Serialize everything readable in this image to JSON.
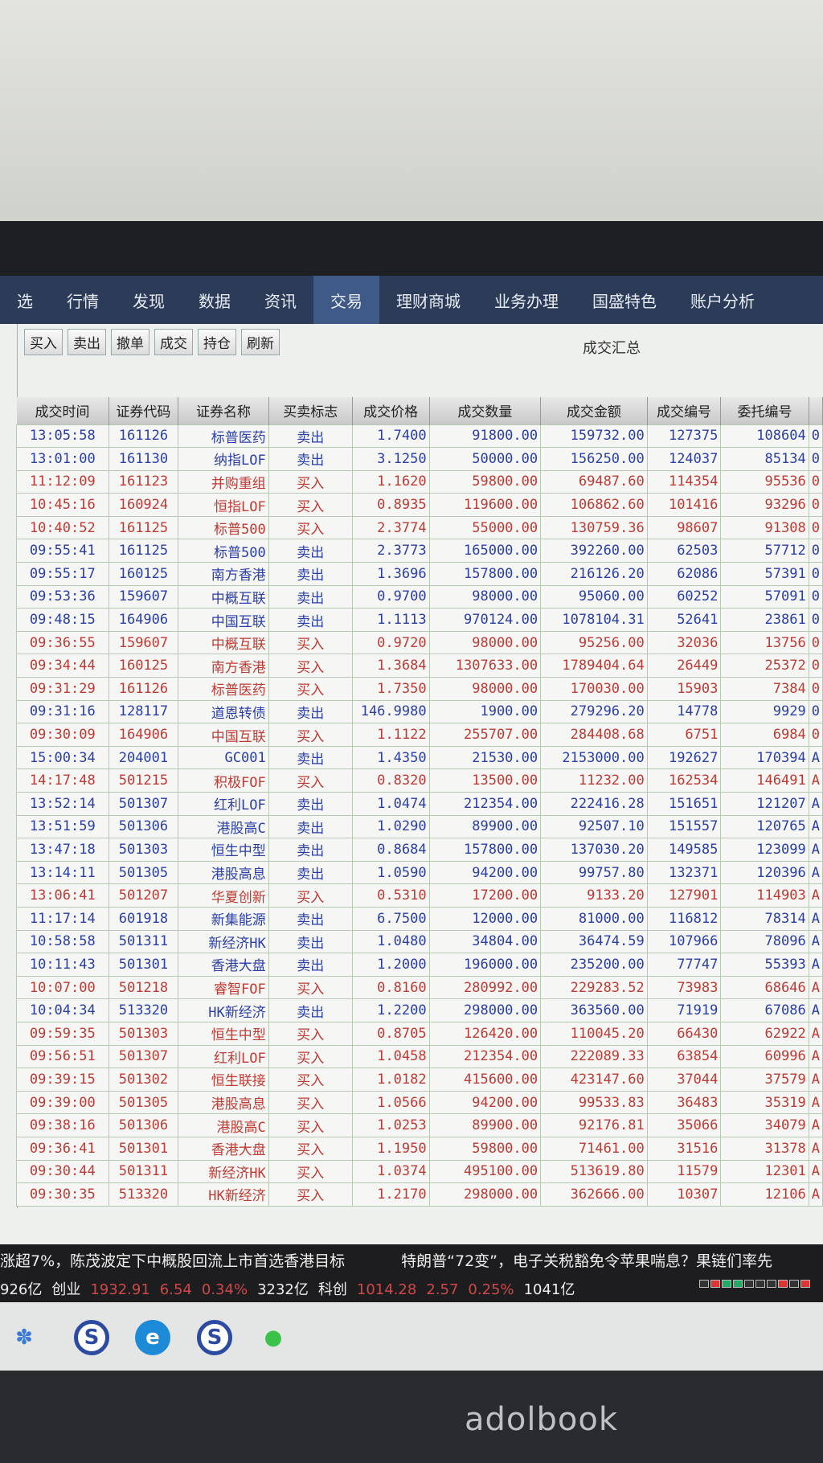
{
  "nav": [
    "选",
    "行情",
    "发现",
    "数据",
    "资讯",
    "交易",
    "理财商城",
    "业务办理",
    "国盛特色",
    "账户分析"
  ],
  "nav_active": 5,
  "toolbar": [
    "买入",
    "卖出",
    "撤单",
    "成交",
    "持仓",
    "刷新"
  ],
  "panel_title": "成交汇总",
  "columns": [
    "成交时间",
    "证券代码",
    "证券名称",
    "买卖标志",
    "成交价格",
    "成交数量",
    "成交金额",
    "成交编号",
    "委托编号",
    ""
  ],
  "colors": {
    "sell": "#2a3ea8",
    "buy": "#bf3a34",
    "nav": "#2b3b58"
  },
  "rows": [
    [
      "13:05:58",
      "161126",
      "标普医药",
      "卖出",
      "1.7400",
      "91800.00",
      "159732.00",
      "127375",
      "108604",
      "0"
    ],
    [
      "13:01:00",
      "161130",
      "纳指LOF",
      "卖出",
      "3.1250",
      "50000.00",
      "156250.00",
      "124037",
      "85134",
      "0"
    ],
    [
      "11:12:09",
      "161123",
      "并购重组",
      "买入",
      "1.1620",
      "59800.00",
      "69487.60",
      "114354",
      "95536",
      "0"
    ],
    [
      "10:45:16",
      "160924",
      "恒指LOF",
      "买入",
      "0.8935",
      "119600.00",
      "106862.60",
      "101416",
      "93296",
      "0"
    ],
    [
      "10:40:52",
      "161125",
      "标普500",
      "买入",
      "2.3774",
      "55000.00",
      "130759.36",
      "98607",
      "91308",
      "0"
    ],
    [
      "09:55:41",
      "161125",
      "标普500",
      "卖出",
      "2.3773",
      "165000.00",
      "392260.00",
      "62503",
      "57712",
      "0"
    ],
    [
      "09:55:17",
      "160125",
      "南方香港",
      "卖出",
      "1.3696",
      "157800.00",
      "216126.20",
      "62086",
      "57391",
      "0"
    ],
    [
      "09:53:36",
      "159607",
      "中概互联",
      "卖出",
      "0.9700",
      "98000.00",
      "95060.00",
      "60252",
      "57091",
      "0"
    ],
    [
      "09:48:15",
      "164906",
      "中国互联",
      "卖出",
      "1.1113",
      "970124.00",
      "1078104.31",
      "52641",
      "23861",
      "0"
    ],
    [
      "09:36:55",
      "159607",
      "中概互联",
      "买入",
      "0.9720",
      "98000.00",
      "95256.00",
      "32036",
      "13756",
      "0"
    ],
    [
      "09:34:44",
      "160125",
      "南方香港",
      "买入",
      "1.3684",
      "1307633.00",
      "1789404.64",
      "26449",
      "25372",
      "0"
    ],
    [
      "09:31:29",
      "161126",
      "标普医药",
      "买入",
      "1.7350",
      "98000.00",
      "170030.00",
      "15903",
      "7384",
      "0"
    ],
    [
      "09:31:16",
      "128117",
      "道恩转债",
      "卖出",
      "146.9980",
      "1900.00",
      "279296.20",
      "14778",
      "9929",
      "0"
    ],
    [
      "09:30:09",
      "164906",
      "中国互联",
      "买入",
      "1.1122",
      "255707.00",
      "284408.68",
      "6751",
      "6984",
      "0"
    ],
    [
      "15:00:34",
      "204001",
      "GC001",
      "卖出",
      "1.4350",
      "21530.00",
      "2153000.00",
      "192627",
      "170394",
      "A"
    ],
    [
      "14:17:48",
      "501215",
      "积极FOF",
      "买入",
      "0.8320",
      "13500.00",
      "11232.00",
      "162534",
      "146491",
      "A"
    ],
    [
      "13:52:14",
      "501307",
      "红利LOF",
      "卖出",
      "1.0474",
      "212354.00",
      "222416.28",
      "151651",
      "121207",
      "A"
    ],
    [
      "13:51:59",
      "501306",
      "港股高C",
      "卖出",
      "1.0290",
      "89900.00",
      "92507.10",
      "151557",
      "120765",
      "A"
    ],
    [
      "13:47:18",
      "501303",
      "恒生中型",
      "卖出",
      "0.8684",
      "157800.00",
      "137030.20",
      "149585",
      "123099",
      "A"
    ],
    [
      "13:14:11",
      "501305",
      "港股高息",
      "卖出",
      "1.0590",
      "94200.00",
      "99757.80",
      "132371",
      "120396",
      "A"
    ],
    [
      "13:06:41",
      "501207",
      "华夏创新",
      "买入",
      "0.5310",
      "17200.00",
      "9133.20",
      "127901",
      "114903",
      "A"
    ],
    [
      "11:17:14",
      "601918",
      "新集能源",
      "卖出",
      "6.7500",
      "12000.00",
      "81000.00",
      "116812",
      "78314",
      "A"
    ],
    [
      "10:58:58",
      "501311",
      "新经济HK",
      "卖出",
      "1.0480",
      "34804.00",
      "36474.59",
      "107966",
      "78096",
      "A"
    ],
    [
      "10:11:43",
      "501301",
      "香港大盘",
      "卖出",
      "1.2000",
      "196000.00",
      "235200.00",
      "77747",
      "55393",
      "A"
    ],
    [
      "10:07:00",
      "501218",
      "睿智FOF",
      "买入",
      "0.8160",
      "280992.00",
      "229283.52",
      "73983",
      "68646",
      "A"
    ],
    [
      "10:04:34",
      "513320",
      "HK新经济",
      "卖出",
      "1.2200",
      "298000.00",
      "363560.00",
      "71919",
      "67086",
      "A"
    ],
    [
      "09:59:35",
      "501303",
      "恒生中型",
      "买入",
      "0.8705",
      "126420.00",
      "110045.20",
      "66430",
      "62922",
      "A"
    ],
    [
      "09:56:51",
      "501307",
      "红利LOF",
      "买入",
      "1.0458",
      "212354.00",
      "222089.33",
      "63854",
      "60996",
      "A"
    ],
    [
      "09:39:15",
      "501302",
      "恒生联接",
      "买入",
      "1.0182",
      "415600.00",
      "423147.60",
      "37044",
      "37579",
      "A"
    ],
    [
      "09:39:00",
      "501305",
      "港股高息",
      "买入",
      "1.0566",
      "94200.00",
      "99533.83",
      "36483",
      "35319",
      "A"
    ],
    [
      "09:38:16",
      "501306",
      "港股高C",
      "买入",
      "1.0253",
      "89900.00",
      "92176.81",
      "35066",
      "34079",
      "A"
    ],
    [
      "09:36:41",
      "501301",
      "香港大盘",
      "买入",
      "1.1950",
      "59800.00",
      "71461.00",
      "31516",
      "31378",
      "A"
    ],
    [
      "09:30:44",
      "501311",
      "新经济HK",
      "买入",
      "1.0374",
      "495100.00",
      "513619.80",
      "11579",
      "12301",
      "A"
    ],
    [
      "09:30:35",
      "513320",
      "HK新经济",
      "买入",
      "1.2170",
      "298000.00",
      "362666.00",
      "10307",
      "12106",
      "A"
    ]
  ],
  "ticker": {
    "news": [
      "涨超7%，陈茂波定下中概股回流上市首选香港目标",
      "特朗普“72变”，电子关税豁免令苹果喘息？果链们率先"
    ],
    "index": [
      {
        "text": "926亿",
        "red": false
      },
      {
        "text": "创业",
        "red": false
      },
      {
        "text": "1932.91",
        "red": true
      },
      {
        "text": "6.54",
        "red": true
      },
      {
        "text": "0.34%",
        "red": true
      },
      {
        "text": "3232亿",
        "red": false
      },
      {
        "text": "科创",
        "red": false
      },
      {
        "text": "1014.28",
        "red": true
      },
      {
        "text": "2.57",
        "red": true
      },
      {
        "text": "0.25%",
        "red": true
      },
      {
        "text": "1041亿",
        "red": false
      }
    ]
  },
  "taskbar": [
    "water-app-icon",
    "guosheng-app-icon",
    "edge-browser-icon",
    "guosheng-app-icon",
    "wechat-icon"
  ],
  "brand": "adolbook"
}
